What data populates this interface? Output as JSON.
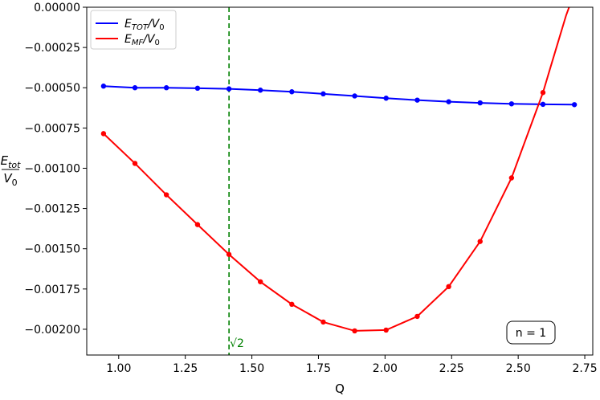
{
  "chart_data": {
    "type": "line",
    "xlabel": "Q",
    "ylabel": {
      "num": "E",
      "num_sub": "tot",
      "den": "V",
      "den_sub": "0"
    },
    "xlim": [
      0.88,
      2.78
    ],
    "ylim": [
      -0.00216,
      0.0
    ],
    "xticks": [
      1.0,
      1.25,
      1.5,
      1.75,
      2.0,
      2.25,
      2.5,
      2.75
    ],
    "xtick_labels": [
      "1.00",
      "1.25",
      "1.50",
      "1.75",
      "2.00",
      "2.25",
      "2.50",
      "2.75"
    ],
    "yticks": [
      0.0,
      -0.00025,
      -0.0005,
      -0.00075,
      -0.001,
      -0.00125,
      -0.0015,
      -0.00175,
      -0.002
    ],
    "ytick_labels": [
      "0.00000",
      "−0.00025",
      "−0.00050",
      "−0.00075",
      "−0.00100",
      "−0.00125",
      "−0.00150",
      "−0.00175",
      "−0.00200"
    ],
    "grid": false,
    "legend_position": "top-left",
    "series": [
      {
        "name": "E_TOT/V_0",
        "label_main": "E",
        "label_sub": "TOT",
        "label_rest": "/V",
        "label_sub2": "0",
        "color": "#0000ff",
        "x": [
          0.943,
          1.061,
          1.179,
          1.296,
          1.414,
          1.532,
          1.65,
          1.768,
          1.886,
          2.004,
          2.121,
          2.239,
          2.357,
          2.475,
          2.593,
          2.711
        ],
        "y": [
          -0.00049,
          -0.0005,
          -0.0005,
          -0.000503,
          -0.000507,
          -0.000515,
          -0.000525,
          -0.000538,
          -0.000551,
          -0.000565,
          -0.000577,
          -0.000587,
          -0.000594,
          -0.0006,
          -0.000603,
          -0.000605
        ],
        "markers": true,
        "curve_x": [],
        "curve_y": []
      },
      {
        "name": "E_MF/V_0",
        "label_main": "E",
        "label_sub": "MF",
        "label_rest": "/V",
        "label_sub2": "0",
        "color": "#ff0000",
        "x": [
          0.943,
          1.061,
          1.179,
          1.296,
          1.414,
          1.532,
          1.65,
          1.768,
          1.886,
          2.004,
          2.121,
          2.239,
          2.357,
          2.475,
          2.593
        ],
        "y": [
          -0.000785,
          -0.00097,
          -0.001165,
          -0.00135,
          -0.001535,
          -0.001705,
          -0.001845,
          -0.001955,
          -0.00201,
          -0.002005,
          -0.00192,
          -0.001735,
          -0.001455,
          -0.00106,
          -0.00053
        ],
        "markers": true,
        "curve_x": [
          2.593,
          2.62,
          2.65,
          2.68,
          2.7
        ],
        "curve_y": [
          -0.00053,
          -0.00038,
          -0.000215,
          -5e-05,
          4e-05
        ]
      }
    ],
    "vline": {
      "x": 1.41421,
      "color": "#008000",
      "label": "√2"
    },
    "annotation_box": "n = 1"
  }
}
